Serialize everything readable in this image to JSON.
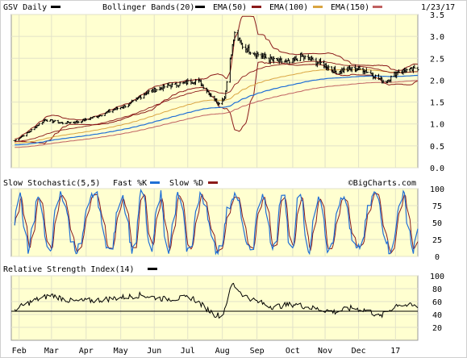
{
  "chart_data": [
    {
      "type": "ohlc",
      "ticker_label": "GSV Daily",
      "date_label": "1/23/17",
      "overlays": [
        {
          "name": "Bollinger Bands(20)",
          "color": "#8b1a1a"
        },
        {
          "name": "EMA(50)",
          "color": "#8b1a1a"
        },
        {
          "name": "EMA(100)",
          "color": "#d9a441"
        },
        {
          "name": "EMA(150)",
          "color": "#1f6fd6"
        }
      ],
      "legend_swatches": {
        "daily": "#000000",
        "bollinger": "#000000",
        "ema50": "#8b1a1a",
        "ema100": "#d9a441",
        "ema150": "#1f6fd6",
        "ema200": "#c06060"
      },
      "ylim": [
        0.0,
        3.5
      ],
      "yticks": [
        "0.0",
        "0.5",
        "1.0",
        "1.5",
        "2.0",
        "2.5",
        "3.0",
        "3.5"
      ],
      "watermark": "©BigCharts.com",
      "price_keypoints": [
        [
          "2016-01-28",
          0.62
        ],
        [
          "2016-02-10",
          0.82
        ],
        [
          "2016-02-24",
          1.1
        ],
        [
          "2016-03-10",
          1.02
        ],
        [
          "2016-03-25",
          1.05
        ],
        [
          "2016-04-10",
          1.17
        ],
        [
          "2016-04-25",
          1.32
        ],
        [
          "2016-05-10",
          1.45
        ],
        [
          "2016-05-25",
          1.72
        ],
        [
          "2016-06-10",
          1.85
        ],
        [
          "2016-06-25",
          1.92
        ],
        [
          "2016-07-10",
          2.0
        ],
        [
          "2016-07-22",
          1.65
        ],
        [
          "2016-07-28",
          1.48
        ],
        [
          "2016-08-03",
          1.6
        ],
        [
          "2016-08-08",
          2.5
        ],
        [
          "2016-08-12",
          3.05
        ],
        [
          "2016-08-20",
          2.75
        ],
        [
          "2016-09-01",
          2.6
        ],
        [
          "2016-09-15",
          2.45
        ],
        [
          "2016-10-01",
          2.4
        ],
        [
          "2016-10-10",
          2.55
        ],
        [
          "2016-10-20",
          2.45
        ],
        [
          "2016-11-01",
          2.35
        ],
        [
          "2016-11-10",
          2.2
        ],
        [
          "2016-11-25",
          2.25
        ],
        [
          "2016-12-05",
          2.25
        ],
        [
          "2016-12-15",
          2.1
        ],
        [
          "2016-12-25",
          1.95
        ],
        [
          "2017-01-05",
          2.2
        ],
        [
          "2017-01-23",
          2.25
        ]
      ]
    },
    {
      "type": "line",
      "title": "Slow Stochastic(5,5)",
      "series": [
        {
          "name": "Fast %K",
          "color": "#1f6fd6"
        },
        {
          "name": "Slow %D",
          "color": "#8b1a1a"
        }
      ],
      "ylim": [
        0,
        100
      ],
      "yticks": [
        "0",
        "25",
        "50",
        "75",
        "100"
      ]
    },
    {
      "type": "line",
      "title": "Relative Strength Index(14)",
      "series": [
        {
          "name": "RSI",
          "color": "#000000"
        }
      ],
      "ylim": [
        0,
        100
      ],
      "yticks": [
        "20",
        "40",
        "60",
        "80",
        "100"
      ],
      "rsi_keypoints": [
        [
          "2016-01-28",
          48
        ],
        [
          "2016-02-15",
          62
        ],
        [
          "2016-03-01",
          70
        ],
        [
          "2016-03-20",
          60
        ],
        [
          "2016-04-10",
          62
        ],
        [
          "2016-05-01",
          66
        ],
        [
          "2016-05-20",
          70
        ],
        [
          "2016-06-10",
          64
        ],
        [
          "2016-07-05",
          66
        ],
        [
          "2016-07-25",
          40
        ],
        [
          "2016-08-01",
          38
        ],
        [
          "2016-08-10",
          88
        ],
        [
          "2016-08-20",
          70
        ],
        [
          "2016-09-01",
          60
        ],
        [
          "2016-09-15",
          52
        ],
        [
          "2016-10-05",
          56
        ],
        [
          "2016-10-20",
          50
        ],
        [
          "2016-11-10",
          44
        ],
        [
          "2016-11-25",
          50
        ],
        [
          "2016-12-10",
          46
        ],
        [
          "2016-12-20",
          36
        ],
        [
          "2017-01-05",
          56
        ],
        [
          "2017-01-23",
          52
        ]
      ]
    }
  ],
  "x_axis": {
    "start": "2016-01-25",
    "end": "2017-01-23",
    "months": [
      {
        "label": "Feb",
        "date": "2016-02-01"
      },
      {
        "label": "Mar",
        "date": "2016-03-01"
      },
      {
        "label": "Apr",
        "date": "2016-04-01"
      },
      {
        "label": "May",
        "date": "2016-05-02"
      },
      {
        "label": "Jun",
        "date": "2016-06-01"
      },
      {
        "label": "Jul",
        "date": "2016-07-01"
      },
      {
        "label": "Aug",
        "date": "2016-08-01"
      },
      {
        "label": "Sep",
        "date": "2016-09-01"
      },
      {
        "label": "Oct",
        "date": "2016-10-03"
      },
      {
        "label": "Nov",
        "date": "2016-11-01"
      },
      {
        "label": "Dec",
        "date": "2016-12-01"
      },
      {
        "label": "17",
        "date": "2017-01-03"
      }
    ]
  },
  "colors": {
    "plot_bg": "#ffffd0",
    "frame": "#d8d8d8",
    "grid": "#e2e2c8",
    "page_bg": "#ffffff",
    "line_black": "#000000",
    "text": "#000000"
  }
}
